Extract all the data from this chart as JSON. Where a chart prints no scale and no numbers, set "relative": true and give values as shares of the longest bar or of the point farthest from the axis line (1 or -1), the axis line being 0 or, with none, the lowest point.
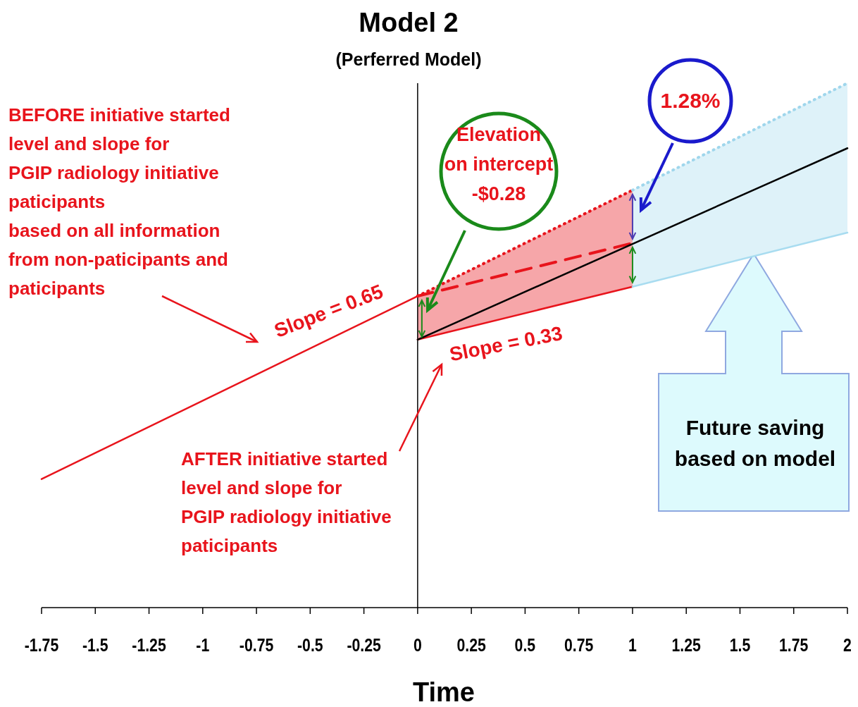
{
  "chart_data": {
    "type": "line",
    "title": "Model 2",
    "subtitle": "(Perferred Model)",
    "xlabel": "Time",
    "relative": true,
    "xlim": [
      -1.75,
      2
    ],
    "xticks": [
      -1.75,
      -1.5,
      -1.25,
      -1,
      -0.75,
      -0.5,
      -0.25,
      0,
      0.25,
      0.5,
      0.75,
      1,
      1.25,
      1.5,
      1.75,
      2
    ],
    "ref_lines": [
      {
        "axis": "x",
        "value": 0,
        "color": "#000000"
      }
    ],
    "series": [
      {
        "color": "#e8141c",
        "x": [
          -1.75,
          0
        ],
        "values": [
          0.245,
          0.594
        ],
        "line_style": "solid"
      },
      {
        "color": "#e8141c",
        "x": [
          0,
          1
        ],
        "values": [
          0.594,
          0.796
        ],
        "line_style": "dotted"
      },
      {
        "color": "#e8141c",
        "x": [
          0,
          1
        ],
        "values": [
          0.594,
          0.695
        ],
        "line_style": "dashed"
      },
      {
        "color": "#e8141c",
        "x": [
          0,
          1
        ],
        "values": [
          0.511,
          0.612
        ],
        "line_style": "solid",
        "lower": [
          0.511,
          0.612
        ],
        "upper": [
          0.594,
          0.796
        ]
      },
      {
        "color": "#000000",
        "x": [
          0,
          2
        ],
        "values": [
          0.511,
          0.876
        ],
        "line_style": "solid"
      },
      {
        "color": "#a8dcf0",
        "x": [
          1,
          2
        ],
        "values": [
          0.612,
          0.715
        ],
        "line_style": "solid",
        "lower": [
          0.612,
          0.715
        ],
        "upper": [
          0.796,
          1
        ]
      },
      {
        "color": "#9fd6ec",
        "x": [
          1,
          2
        ],
        "values": [
          0.796,
          1
        ],
        "line_style": "dotted"
      }
    ],
    "annotations": [
      "BEFORE initiative started\nlevel and slope for\nPGIP radiology initiative\npaticipants\nbased on all information\nfrom non-paticipants and\npaticipants",
      "Slope = 0.65",
      "Slope = 0.33",
      "AFTER initiative started\nlevel and slope for\nPGIP radiology initiative\npaticipants",
      "Elevation\non intercept\n-$0.28",
      "1.28%",
      "Future saving\nbased on model"
    ]
  }
}
